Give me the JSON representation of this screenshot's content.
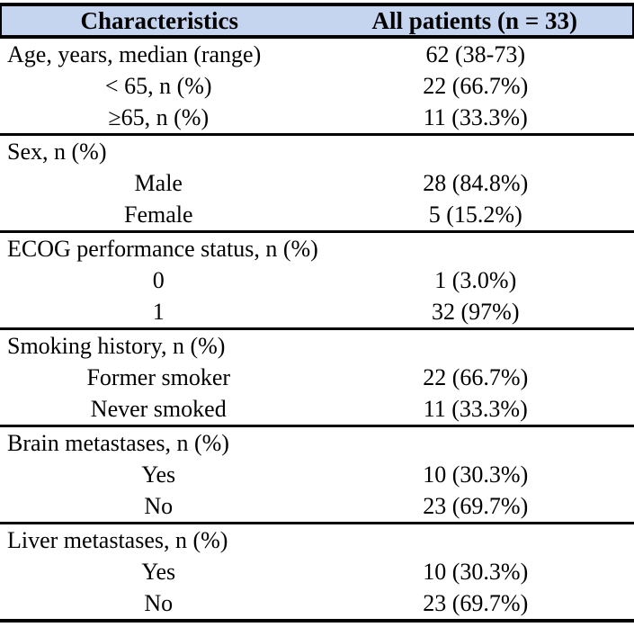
{
  "table": {
    "colors": {
      "header_bg": "#c5d4ef",
      "border": "#000000"
    },
    "header": {
      "col1": "Characteristics",
      "col2": "All patients (n = 33)"
    },
    "sections": [
      {
        "rows": [
          {
            "label": "Age, years, median (range)",
            "value": "62 (38-73)",
            "indent": false
          },
          {
            "label": "< 65, n (%)",
            "value": "22 (66.7%)",
            "indent": true
          },
          {
            "label": "≥65, n (%)",
            "value": "11 (33.3%)",
            "indent": true
          }
        ]
      },
      {
        "rows": [
          {
            "label": "Sex, n (%)",
            "value": "",
            "indent": false
          },
          {
            "label": "Male",
            "value": "28 (84.8%)",
            "indent": true
          },
          {
            "label": "Female",
            "value": "5 (15.2%)",
            "indent": true
          }
        ]
      },
      {
        "rows": [
          {
            "label": "ECOG performance status, n (%)",
            "value": "",
            "indent": false
          },
          {
            "label": "0",
            "value": "1 (3.0%)",
            "indent": true
          },
          {
            "label": "1",
            "value": "32 (97%)",
            "indent": true
          }
        ]
      },
      {
        "rows": [
          {
            "label": "Smoking history, n (%)",
            "value": "",
            "indent": false
          },
          {
            "label": "Former smoker",
            "value": "22 (66.7%)",
            "indent": true
          },
          {
            "label": "Never smoked",
            "value": "11 (33.3%)",
            "indent": true
          }
        ]
      },
      {
        "rows": [
          {
            "label": "Brain metastases, n (%)",
            "value": "",
            "indent": false
          },
          {
            "label": "Yes",
            "value": "10 (30.3%)",
            "indent": true
          },
          {
            "label": "No",
            "value": "23 (69.7%)",
            "indent": true
          }
        ]
      },
      {
        "rows": [
          {
            "label": "Liver metastases, n (%)",
            "value": "",
            "indent": false
          },
          {
            "label": "Yes",
            "value": "10 (30.3%)",
            "indent": true
          },
          {
            "label": "No",
            "value": "23 (69.7%)",
            "indent": true
          }
        ]
      }
    ]
  }
}
